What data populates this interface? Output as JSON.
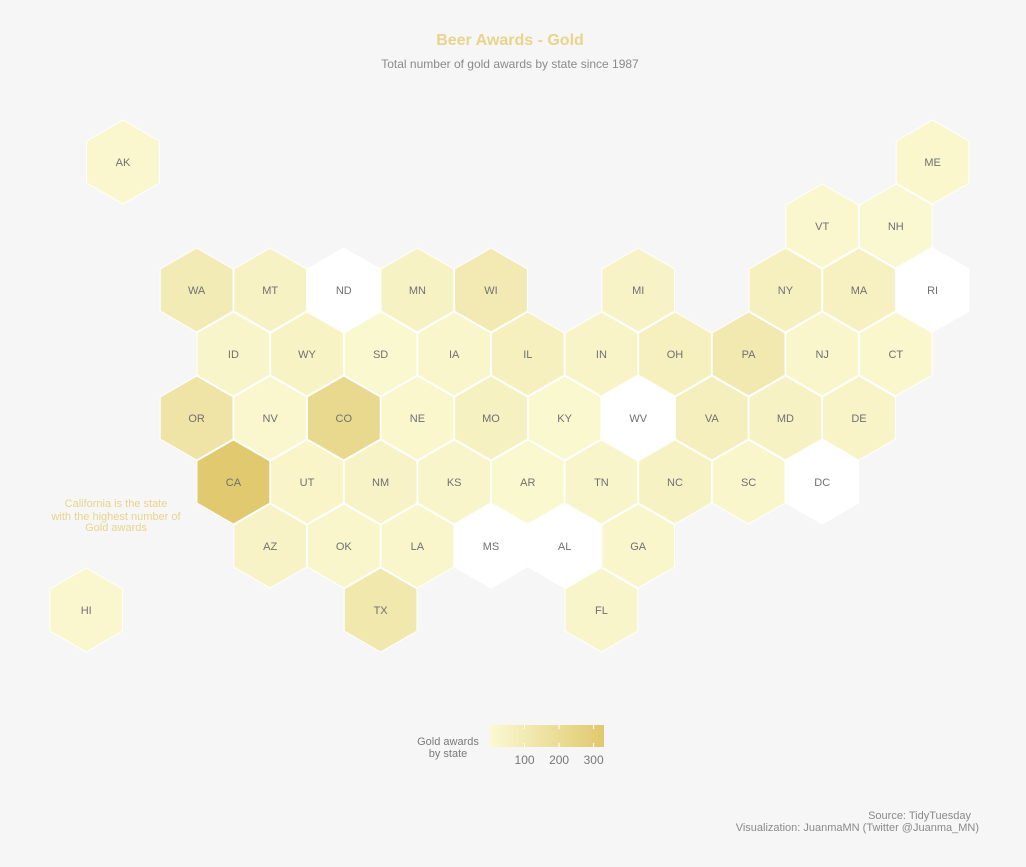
{
  "chart_data": {
    "type": "hex-map",
    "title": "Beer Awards - Gold",
    "subtitle": "Total number of gold awards by state since 1987",
    "annotation": [
      "California is the state",
      "with the highest number of",
      "Gold awards"
    ],
    "legend": {
      "title": [
        "Gold awards",
        "by state"
      ],
      "ticks": [
        100,
        200,
        300
      ],
      "range": [
        0,
        330
      ],
      "colors": [
        "#fbf9d2",
        "#e0c96e"
      ]
    },
    "missing_color": "#ffffff",
    "caption": [
      "Source: TidyTuesday",
      "Visualization: JuanmaMN (Twitter @Juanma_MN)"
    ],
    "states": [
      {
        "state": "AK",
        "row": 0,
        "col": 0,
        "value": 12
      },
      {
        "state": "ME",
        "row": 0,
        "col": 11,
        "value": 15
      },
      {
        "state": "VT",
        "row": 1,
        "col": 9.5,
        "value": 12
      },
      {
        "state": "NH",
        "row": 1,
        "col": 10.5,
        "value": 8
      },
      {
        "state": "WA",
        "row": 2,
        "col": 1,
        "value": 95
      },
      {
        "state": "MT",
        "row": 2,
        "col": 2,
        "value": 50
      },
      {
        "state": "ND",
        "row": 2,
        "col": 3,
        "value": null
      },
      {
        "state": "MN",
        "row": 2,
        "col": 4,
        "value": 45
      },
      {
        "state": "WI",
        "row": 2,
        "col": 5,
        "value": 105
      },
      {
        "state": "MI",
        "row": 2,
        "col": 7,
        "value": 40
      },
      {
        "state": "NY",
        "row": 2,
        "col": 9,
        "value": 62
      },
      {
        "state": "MA",
        "row": 2,
        "col": 10,
        "value": 55
      },
      {
        "state": "RI",
        "row": 2,
        "col": 11,
        "value": null
      },
      {
        "state": "ID",
        "row": 3,
        "col": 1.5,
        "value": 25
      },
      {
        "state": "WY",
        "row": 3,
        "col": 2.5,
        "value": 42
      },
      {
        "state": "SD",
        "row": 3,
        "col": 3.5,
        "value": 10
      },
      {
        "state": "IA",
        "row": 3,
        "col": 4.5,
        "value": 22
      },
      {
        "state": "IL",
        "row": 3,
        "col": 5.5,
        "value": 62
      },
      {
        "state": "IN",
        "row": 3,
        "col": 6.5,
        "value": 35
      },
      {
        "state": "OH",
        "row": 3,
        "col": 7.5,
        "value": 65
      },
      {
        "state": "PA",
        "row": 3,
        "col": 8.5,
        "value": 110
      },
      {
        "state": "NJ",
        "row": 3,
        "col": 9.5,
        "value": 20
      },
      {
        "state": "CT",
        "row": 3,
        "col": 10.5,
        "value": 15
      },
      {
        "state": "OR",
        "row": 4,
        "col": 1,
        "value": 145
      },
      {
        "state": "NV",
        "row": 4,
        "col": 2,
        "value": 18
      },
      {
        "state": "CO",
        "row": 4,
        "col": 3,
        "value": 220
      },
      {
        "state": "NE",
        "row": 4,
        "col": 4,
        "value": 15
      },
      {
        "state": "MO",
        "row": 4,
        "col": 5,
        "value": 58
      },
      {
        "state": "KY",
        "row": 4,
        "col": 6,
        "value": 10
      },
      {
        "state": "WV",
        "row": 4,
        "col": 7,
        "value": null
      },
      {
        "state": "VA",
        "row": 4,
        "col": 8,
        "value": 70
      },
      {
        "state": "MD",
        "row": 4,
        "col": 9,
        "value": 45
      },
      {
        "state": "DE",
        "row": 4,
        "col": 10,
        "value": 32
      },
      {
        "state": "CA",
        "row": 5,
        "col": 1.5,
        "value": 330
      },
      {
        "state": "UT",
        "row": 5,
        "col": 2.5,
        "value": 30
      },
      {
        "state": "NM",
        "row": 5,
        "col": 3.5,
        "value": 40
      },
      {
        "state": "KS",
        "row": 5,
        "col": 4.5,
        "value": 28
      },
      {
        "state": "AR",
        "row": 5,
        "col": 5.5,
        "value": 10
      },
      {
        "state": "TN",
        "row": 5,
        "col": 6.5,
        "value": 28
      },
      {
        "state": "NC",
        "row": 5,
        "col": 7.5,
        "value": 48
      },
      {
        "state": "SC",
        "row": 5,
        "col": 8.5,
        "value": 22
      },
      {
        "state": "DC",
        "row": 5,
        "col": 9.5,
        "value": null
      },
      {
        "state": "AZ",
        "row": 6,
        "col": 2,
        "value": 40
      },
      {
        "state": "OK",
        "row": 6,
        "col": 3,
        "value": 22
      },
      {
        "state": "LA",
        "row": 6,
        "col": 4,
        "value": 20
      },
      {
        "state": "MS",
        "row": 6,
        "col": 5,
        "value": null
      },
      {
        "state": "AL",
        "row": 6,
        "col": 6,
        "value": null
      },
      {
        "state": "GA",
        "row": 6,
        "col": 7,
        "value": 20
      },
      {
        "state": "HI",
        "row": 7,
        "col": -0.5,
        "value": 12
      },
      {
        "state": "TX",
        "row": 7,
        "col": 3.5,
        "value": 120
      },
      {
        "state": "FL",
        "row": 7,
        "col": 6.5,
        "value": 28
      }
    ]
  }
}
